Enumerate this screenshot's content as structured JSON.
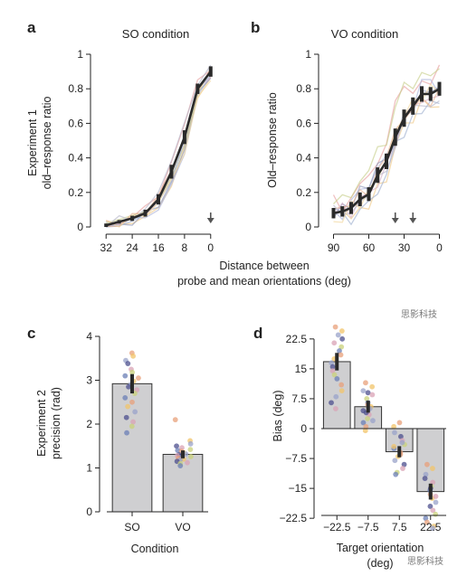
{
  "colors": {
    "mean_line": "#2a2a2a",
    "bar_fill": "#cfcfd1",
    "axis": "#222222",
    "arrow": "#555555",
    "dots": [
      "#e8a07a",
      "#f1c46a",
      "#9aa3c9",
      "#4c4f8e",
      "#d9a3b6",
      "#c9d27a",
      "#6b7fb5"
    ]
  },
  "panel_letters": [
    "a",
    "b",
    "c",
    "d"
  ],
  "shared_xlabel_line1": "Distance between",
  "shared_xlabel_line2": "probe and mean orientations (deg)",
  "watermark_top": "思影科技",
  "watermark_bottom": "思影科技",
  "chart_data": [
    {
      "id": "a",
      "type": "line",
      "title": "SO condition",
      "ylabel_line1": "Experiment 1",
      "ylabel_line2": "old–response ratio",
      "xlabel": "",
      "x_reversed": true,
      "xlim": [
        34,
        -2
      ],
      "ylim": [
        0,
        1
      ],
      "xticks": [
        32,
        24,
        16,
        8,
        0
      ],
      "yticks": [
        0,
        0.2,
        0.4,
        0.6,
        0.8,
        1
      ],
      "ytick_labels": [
        "0",
        "0.2",
        "0.4",
        "0.6",
        "0.8",
        "1"
      ],
      "mean": {
        "x": [
          32,
          28,
          24,
          20,
          16,
          12,
          8,
          4,
          0
        ],
        "y": [
          0.01,
          0.03,
          0.05,
          0.08,
          0.16,
          0.32,
          0.52,
          0.8,
          0.9
        ],
        "err": [
          0.01,
          0.01,
          0.015,
          0.02,
          0.03,
          0.04,
          0.04,
          0.03,
          0.03
        ]
      },
      "arrows_x": [
        0
      ],
      "individual_spread": 0.06
    },
    {
      "id": "b",
      "type": "line",
      "title": "VO condition",
      "ylabel_line1": "Old–response ratio",
      "ylabel_line2": "",
      "xlabel": "",
      "x_reversed": true,
      "xlim": [
        95,
        -5
      ],
      "ylim": [
        0,
        1
      ],
      "xticks": [
        90,
        60,
        30,
        0
      ],
      "yticks": [
        0,
        0.2,
        0.4,
        0.6,
        0.8,
        1
      ],
      "ytick_labels": [
        "0",
        "0.2",
        "0.4",
        "0.6",
        "0.8",
        "1"
      ],
      "mean": {
        "x": [
          90,
          82.5,
          75,
          67.5,
          60,
          52.5,
          45,
          37.5,
          30,
          22.5,
          15,
          7.5,
          0
        ],
        "y": [
          0.08,
          0.09,
          0.11,
          0.16,
          0.19,
          0.3,
          0.38,
          0.52,
          0.63,
          0.7,
          0.77,
          0.77,
          0.8
        ],
        "err": [
          0.03,
          0.03,
          0.035,
          0.04,
          0.04,
          0.045,
          0.045,
          0.05,
          0.05,
          0.05,
          0.045,
          0.04,
          0.04
        ]
      },
      "arrows_x": [
        37.5,
        22.5
      ],
      "individual_spread": 0.14
    },
    {
      "id": "c",
      "type": "bar",
      "title": "",
      "ylabel_line1": "Experiment 2",
      "ylabel_line2": "precision (rad)",
      "xlabel": "Condition",
      "categories": [
        "SO",
        "VO"
      ],
      "values": [
        2.92,
        1.31
      ],
      "err": [
        0.22,
        0.09
      ],
      "ylim": [
        0,
        4
      ],
      "yticks": [
        0,
        1,
        2,
        3,
        4
      ],
      "ytick_labels": [
        "0",
        "1",
        "2",
        "3",
        "4"
      ],
      "points": [
        [
          3.62,
          3.55,
          3.45,
          3.38,
          3.25,
          3.18,
          3.1,
          3.05,
          2.98,
          2.9,
          2.85,
          2.78,
          2.7,
          2.6,
          2.5,
          2.4,
          2.28,
          2.15,
          2.05,
          1.95,
          1.8
        ],
        [
          2.1,
          1.62,
          1.55,
          1.5,
          1.46,
          1.42,
          1.4,
          1.38,
          1.35,
          1.32,
          1.3,
          1.28,
          1.26,
          1.24,
          1.22,
          1.2,
          1.18,
          1.15,
          1.12,
          1.1,
          1.05
        ]
      ]
    },
    {
      "id": "d",
      "type": "bar",
      "title": "",
      "ylabel_line1": "Bias (deg)",
      "ylabel_line2": "",
      "xlabel_line1": "Target orientation",
      "xlabel_line2": "(deg)",
      "categories": [
        "−22.5",
        "−7.5",
        "7.5",
        "22.5"
      ],
      "values": [
        16.8,
        5.5,
        -5.8,
        -15.8
      ],
      "err": [
        2.2,
        1.5,
        1.4,
        2.0
      ],
      "ylim": [
        -27,
        27
      ],
      "yticks": [
        22.5,
        15,
        7.5,
        0,
        -7.5,
        -15,
        -22.5
      ],
      "ytick_labels": [
        "22.5",
        "15",
        "7.5",
        "0",
        "−7.5",
        "−15",
        "−22.5"
      ],
      "points": [
        [
          25.5,
          24.5,
          23.5,
          22.5,
          21.5,
          20.5,
          19.5,
          18.5,
          17.5,
          16.5,
          15.5,
          14.5,
          13.5,
          12.5,
          11,
          9.5,
          8,
          6.5,
          5
        ],
        [
          11.5,
          10.5,
          9.5,
          9,
          8.5,
          7.5,
          6.5,
          6,
          5.5,
          5,
          4.5,
          3.5,
          2.5,
          1.5,
          0.5,
          -0.5,
          2,
          4
        ],
        [
          1.5,
          0.5,
          -1,
          -2,
          -3,
          -4,
          -5,
          -6,
          -7,
          -8,
          -9,
          -10,
          -11,
          -11.5,
          -6.5,
          -4.5,
          -3.5
        ],
        [
          -9,
          -10,
          -11.5,
          -12.5,
          -13.5,
          -14.5,
          -15.5,
          -16.5,
          -17.5,
          -18.5,
          -19.5,
          -20.5,
          -21.5,
          -22.5,
          -23.5,
          -24.5,
          -25,
          -15,
          -17
        ]
      ]
    }
  ]
}
